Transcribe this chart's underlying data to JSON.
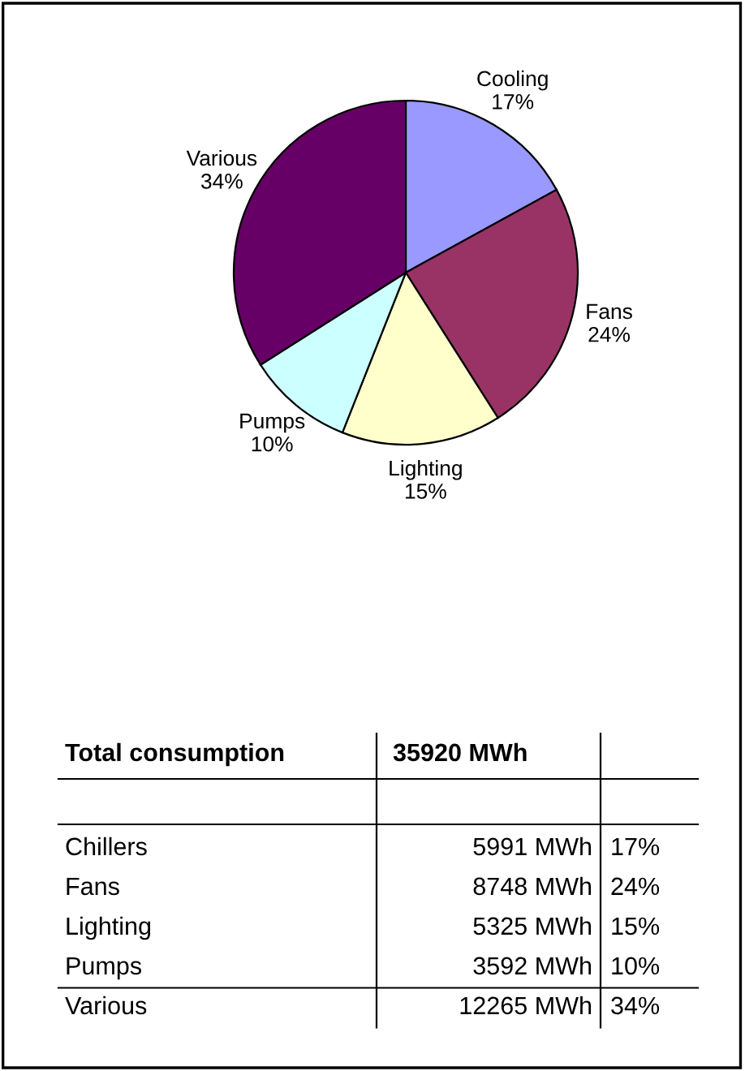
{
  "chart_data": {
    "type": "pie",
    "categories": [
      "Cooling",
      "Fans",
      "Lighting",
      "Pumps",
      "Various"
    ],
    "values": [
      17,
      24,
      15,
      10,
      34
    ],
    "value_labels": [
      "17%",
      "24%",
      "15%",
      "10%",
      "34%"
    ],
    "colors": [
      "#9999ff",
      "#993366",
      "#ffffcc",
      "#ccffff",
      "#660066"
    ],
    "annotations": [
      "Total consumption",
      "35920 MWh",
      "Chillers",
      "5991 MWh",
      "17%",
      "Fans",
      "8748 MWh",
      "24%",
      "Lighting",
      "5325 MWh",
      "15%",
      "Pumps",
      "3592 MWh",
      "10%",
      "Various",
      "12265 MWh",
      "34%"
    ]
  }
}
